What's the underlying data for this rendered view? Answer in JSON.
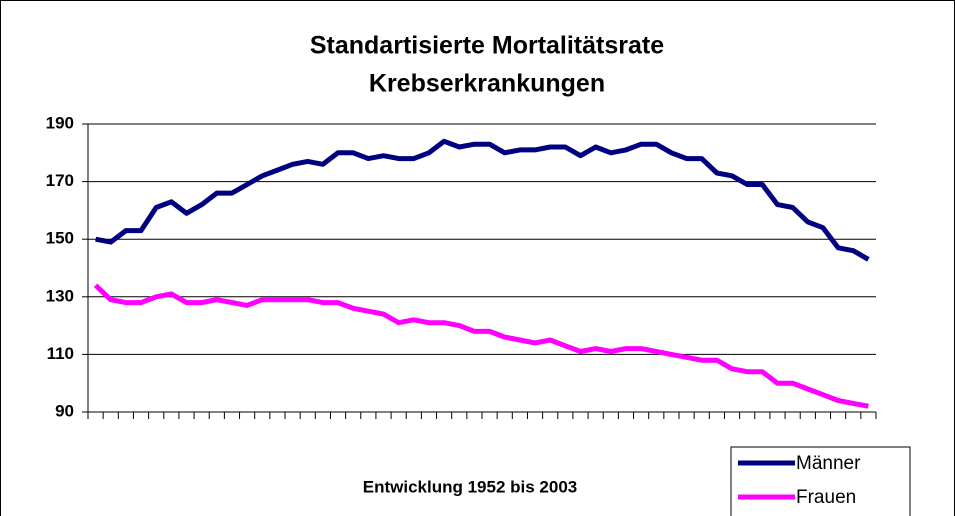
{
  "chart_data": {
    "type": "line",
    "title": "Standartisierte Mortalitätsrate",
    "subtitle": "Krebserkrankungen",
    "x_label": "Entwicklung 1952 bis 2003",
    "categories": [
      null,
      null,
      null,
      null,
      null,
      null,
      null,
      null,
      null,
      null,
      null,
      null,
      null,
      null,
      null,
      null,
      null,
      null,
      null,
      null,
      null,
      null,
      null,
      null,
      null,
      null,
      null,
      null,
      null,
      null,
      null,
      null,
      null,
      null,
      null,
      null,
      null,
      null,
      null,
      null,
      null,
      null,
      null,
      null,
      null,
      null,
      null,
      null,
      null,
      null,
      null,
      null
    ],
    "series": [
      {
        "name": "Männer",
        "color": "#000080",
        "values": [
          150,
          149,
          153,
          153,
          161,
          163,
          159,
          162,
          166,
          166,
          169,
          172,
          174,
          176,
          177,
          176,
          180,
          180,
          178,
          179,
          178,
          178,
          180,
          184,
          182,
          183,
          183,
          180,
          181,
          181,
          182,
          182,
          179,
          182,
          180,
          181,
          183,
          183,
          180,
          178,
          178,
          173,
          172,
          169,
          169,
          162,
          161,
          156,
          154,
          147,
          146,
          143
        ]
      },
      {
        "name": "Frauen",
        "color": "#ff00ff",
        "values": [
          134,
          129,
          128,
          128,
          130,
          131,
          128,
          128,
          129,
          128,
          127,
          129,
          129,
          129,
          129,
          128,
          128,
          126,
          125,
          124,
          121,
          122,
          121,
          121,
          120,
          118,
          118,
          116,
          115,
          114,
          115,
          113,
          111,
          112,
          111,
          112,
          112,
          111,
          110,
          109,
          108,
          108,
          105,
          104,
          104,
          100,
          100,
          98,
          96,
          94,
          93,
          92
        ]
      }
    ],
    "ylim": [
      90,
      190
    ],
    "yticks": [
      90,
      110,
      130,
      150,
      170,
      190
    ],
    "grid": true,
    "legend": "lower right"
  }
}
